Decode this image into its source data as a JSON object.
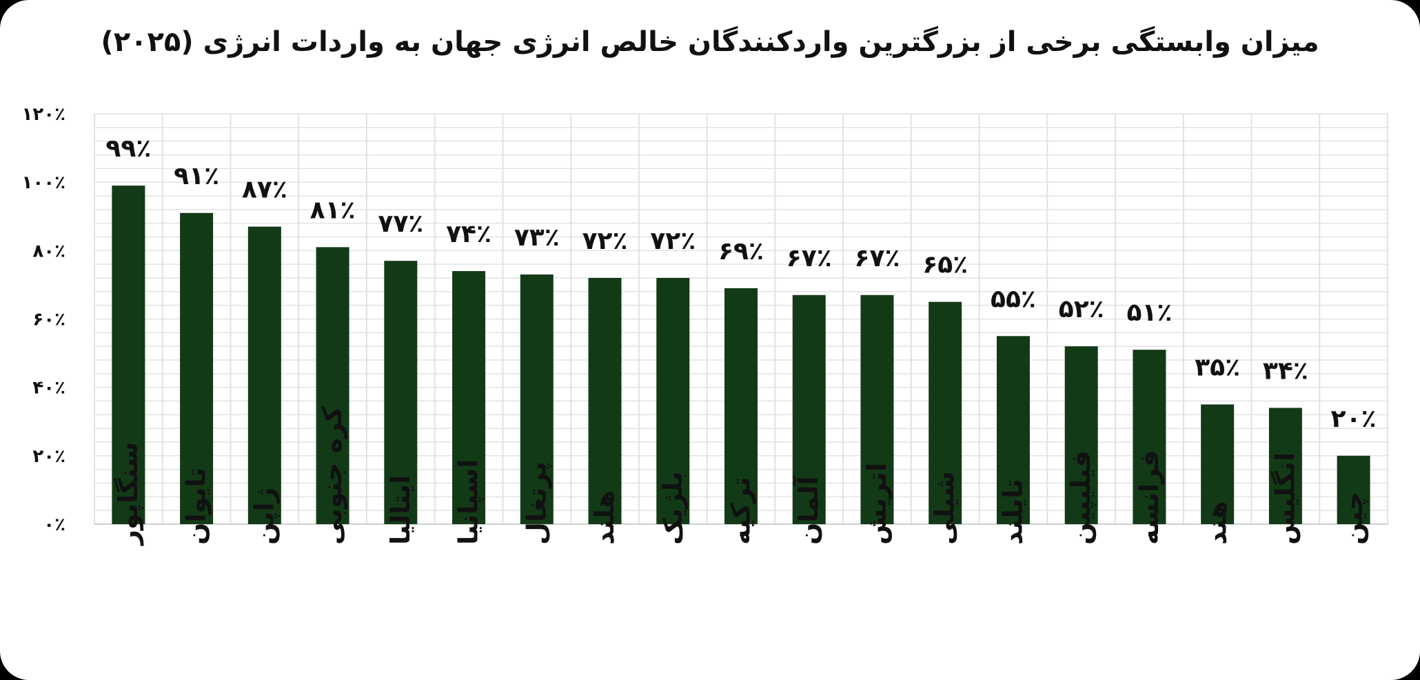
{
  "chart_data": {
    "type": "bar",
    "title": "میزان وابستگی برخی از بزرگترین واردکنندگان خالص انرژی جهان به واردات انرژی (۲۰۲۵)",
    "categories": [
      "سنگاپور",
      "تایوان",
      "ژاپن",
      "کره جنوبی",
      "ایتالیا",
      "اسپانیا",
      "پرتغال",
      "هلند",
      "بلژیک",
      "ترکیه",
      "آلمان",
      "اتریش",
      "شیلی",
      "تایلند",
      "فیلیپین",
      "فرانسه",
      "هند",
      "انگلیس",
      "چین"
    ],
    "values": [
      99,
      91,
      87,
      81,
      77,
      74,
      73,
      72,
      72,
      69,
      67,
      67,
      65,
      55,
      52,
      51,
      35,
      34,
      20
    ],
    "data_labels": [
      "۹۹٪",
      "۹۱٪",
      "۸۷٪",
      "۸۱٪",
      "۷۷٪",
      "۷۴٪",
      "۷۳٪",
      "۷۲٪",
      "۷۲٪",
      "۶۹٪",
      "۶۷٪",
      "۶۷٪",
      "۶۵٪",
      "۵۵٪",
      "۵۲٪",
      "۵۱٪",
      "۳۵٪",
      "۳۴٪",
      "۲۰٪"
    ],
    "ylim": [
      0,
      120
    ],
    "yticks": [
      0,
      20,
      40,
      60,
      80,
      100,
      120
    ],
    "ytick_labels": [
      "۰٪",
      "۲۰٪",
      "۴۰٪",
      "۶۰٪",
      "۸۰٪",
      "۱۰۰٪",
      "۱۲۰٪"
    ],
    "grid": true,
    "bar_color": "#133a17",
    "grid_color": "#e2e2e2"
  }
}
